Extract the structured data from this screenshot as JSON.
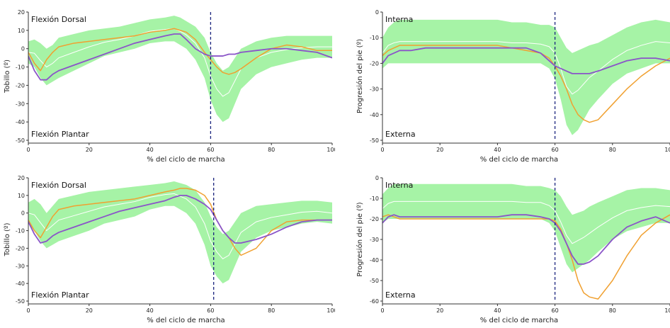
{
  "colors": {
    "band": "#a6f3a6",
    "mean": "#ffffff",
    "orange": "#f0a030",
    "purple": "#8a55c8",
    "marker": "#1a237e",
    "plot_bg": "#ffffff"
  },
  "chart_data": [
    {
      "type": "line",
      "xlabel": "% del ciclo de marcha",
      "ylabel": "Tobillo (º)",
      "xlim": [
        0,
        100
      ],
      "ylim": [
        -50,
        20
      ],
      "xticks": [
        "0",
        "20",
        "40",
        "60",
        "80",
        "100"
      ],
      "yticks": [
        "20",
        "10",
        "0",
        "-10",
        "-20",
        "-30",
        "-40",
        "-50"
      ],
      "annotation_top": "Flexión Dorsal",
      "annotation_bottom": "Flexión Plantar",
      "vline_x": 60,
      "x": [
        0,
        2,
        4,
        6,
        8,
        10,
        15,
        20,
        25,
        30,
        35,
        40,
        45,
        48,
        50,
        52,
        55,
        58,
        60,
        62,
        64,
        66,
        68,
        70,
        75,
        80,
        85,
        90,
        95,
        100
      ],
      "band_upper": [
        4,
        5,
        3,
        0,
        2,
        6,
        8,
        10,
        11,
        12,
        14,
        16,
        17,
        18,
        17,
        15,
        12,
        6,
        -2,
        -8,
        -12,
        -10,
        -5,
        0,
        4,
        6,
        7,
        7,
        7,
        7
      ],
      "band_lower": [
        -8,
        -10,
        -16,
        -20,
        -18,
        -16,
        -12,
        -8,
        -4,
        -2,
        0,
        3,
        4,
        4,
        2,
        0,
        -6,
        -16,
        -28,
        -36,
        -40,
        -38,
        -30,
        -22,
        -14,
        -10,
        -8,
        -6,
        -5,
        -5
      ],
      "series": [
        {
          "values": [
            -2,
            -8,
            -12,
            -6,
            -2,
            1,
            3,
            4,
            5,
            6,
            7,
            9,
            10,
            11,
            10,
            9,
            5,
            -2,
            -6,
            -10,
            -13,
            -14,
            -13,
            -11,
            -5,
            0,
            2,
            1,
            -1,
            -1
          ]
        },
        {
          "values": [
            -4,
            -12,
            -17,
            -17,
            -14,
            -12,
            -9,
            -6,
            -3,
            0,
            3,
            5,
            7,
            8,
            8,
            5,
            0,
            -3,
            -4,
            -4,
            -4,
            -3,
            -3,
            -2,
            -1,
            0,
            0,
            -1,
            -2,
            -5
          ]
        }
      ]
    },
    {
      "type": "line",
      "xlabel": "% del ciclo de marcha",
      "ylabel": "Progresión del pie (º)",
      "xlim": [
        0,
        100
      ],
      "ylim": [
        -50,
        0
      ],
      "xticks": [
        "0",
        "20",
        "40",
        "60",
        "80",
        "100"
      ],
      "yticks": [
        "0",
        "-10",
        "-20",
        "-30",
        "-40",
        "-50"
      ],
      "annotation_top": "Interna",
      "annotation_bottom": "Externa",
      "vline_x": 60,
      "x": [
        0,
        2,
        4,
        6,
        10,
        15,
        20,
        25,
        30,
        35,
        40,
        45,
        50,
        55,
        58,
        60,
        62,
        64,
        66,
        68,
        70,
        72,
        75,
        80,
        85,
        90,
        95,
        100
      ],
      "band_upper": [
        -10,
        -6,
        -4,
        -3,
        -3,
        -3,
        -3,
        -3,
        -3,
        -3,
        -3,
        -4,
        -4,
        -5,
        -5,
        -6,
        -10,
        -14,
        -16,
        -15,
        -14,
        -13,
        -12,
        -9,
        -6,
        -4,
        -3,
        -4
      ],
      "band_lower": [
        -22,
        -20,
        -20,
        -20,
        -20,
        -20,
        -20,
        -20,
        -20,
        -20,
        -20,
        -20,
        -20,
        -20,
        -22,
        -26,
        -34,
        -44,
        -48,
        -46,
        -42,
        -38,
        -34,
        -28,
        -24,
        -22,
        -20,
        -20
      ],
      "series": [
        {
          "values": [
            -17,
            -15,
            -14,
            -13,
            -13,
            -13,
            -13,
            -13,
            -13,
            -13,
            -13,
            -14,
            -15,
            -16,
            -18,
            -21,
            -25,
            -30,
            -36,
            -40,
            -42,
            -43,
            -42,
            -36,
            -30,
            -25,
            -21,
            -18
          ]
        },
        {
          "values": [
            -20,
            -17,
            -16,
            -15,
            -15,
            -14,
            -14,
            -14,
            -14,
            -14,
            -14,
            -14,
            -14,
            -16,
            -19,
            -21,
            -22,
            -23,
            -24,
            -24,
            -24,
            -24,
            -23,
            -21,
            -19,
            -18,
            -18,
            -19
          ]
        }
      ]
    },
    {
      "type": "line",
      "xlabel": "% del ciclo de marcha",
      "ylabel": "Tobillo (º)",
      "xlim": [
        0,
        100
      ],
      "ylim": [
        -50,
        20
      ],
      "xticks": [
        "0",
        "20",
        "40",
        "60",
        "80",
        "100"
      ],
      "yticks": [
        "20",
        "10",
        "0",
        "-10",
        "-20",
        "-30",
        "-40",
        "-50"
      ],
      "annotation_top": "Flexión Dorsal",
      "annotation_bottom": "Flexión Plantar",
      "vline_x": 61,
      "x": [
        0,
        2,
        4,
        6,
        8,
        10,
        15,
        20,
        25,
        30,
        35,
        40,
        45,
        48,
        50,
        52,
        55,
        58,
        60,
        62,
        64,
        66,
        68,
        70,
        75,
        80,
        85,
        90,
        95,
        100
      ],
      "band_upper": [
        6,
        8,
        5,
        0,
        4,
        8,
        10,
        12,
        13,
        14,
        15,
        16,
        17,
        18,
        17,
        16,
        13,
        6,
        -2,
        -8,
        -12,
        -10,
        -5,
        0,
        4,
        5,
        6,
        7,
        7,
        6
      ],
      "band_lower": [
        -6,
        -10,
        -16,
        -20,
        -18,
        -16,
        -13,
        -10,
        -6,
        -4,
        -2,
        2,
        4,
        4,
        2,
        0,
        -6,
        -18,
        -30,
        -36,
        -40,
        -38,
        -30,
        -22,
        -14,
        -10,
        -8,
        -6,
        -5,
        -6
      ],
      "series": [
        {
          "values": [
            -4,
            -10,
            -14,
            -8,
            -2,
            2,
            4,
            5,
            6,
            7,
            8,
            10,
            12,
            13,
            14,
            14,
            13,
            10,
            5,
            -4,
            -10,
            -14,
            -20,
            -24,
            -20,
            -10,
            -5,
            -4,
            -4,
            -4
          ]
        },
        {
          "values": [
            -5,
            -12,
            -17,
            -16,
            -13,
            -11,
            -8,
            -5,
            -2,
            1,
            3,
            5,
            7,
            9,
            10,
            10,
            8,
            5,
            2,
            -4,
            -10,
            -14,
            -17,
            -17,
            -15,
            -12,
            -8,
            -5,
            -4,
            -4
          ]
        }
      ]
    },
    {
      "type": "line",
      "xlabel": "% del ciclo de marcha",
      "ylabel": "Progresión del pie (º)",
      "xlim": [
        0,
        100
      ],
      "ylim": [
        -60,
        0
      ],
      "xticks": [
        "0",
        "20",
        "40",
        "60",
        "80",
        "100"
      ],
      "yticks": [
        "0",
        "-10",
        "-20",
        "-30",
        "-40",
        "-50",
        "-60"
      ],
      "annotation_top": "Interna",
      "annotation_bottom": "Externa",
      "vline_x": 60,
      "x": [
        0,
        2,
        4,
        6,
        10,
        15,
        20,
        25,
        30,
        35,
        40,
        45,
        50,
        55,
        58,
        60,
        62,
        64,
        66,
        68,
        70,
        72,
        75,
        80,
        85,
        90,
        95,
        100
      ],
      "band_upper": [
        -8,
        -5,
        -3,
        -3,
        -3,
        -3,
        -3,
        -3,
        -3,
        -3,
        -3,
        -3,
        -4,
        -4,
        -5,
        -6,
        -9,
        -14,
        -18,
        -17,
        -16,
        -14,
        -12,
        -9,
        -6,
        -5,
        -5,
        -6
      ],
      "band_lower": [
        -22,
        -20,
        -20,
        -20,
        -20,
        -20,
        -20,
        -20,
        -20,
        -20,
        -20,
        -20,
        -20,
        -20,
        -22,
        -26,
        -34,
        -42,
        -46,
        -44,
        -42,
        -40,
        -36,
        -30,
        -26,
        -24,
        -22,
        -22
      ],
      "series": [
        {
          "values": [
            -19,
            -18,
            -19,
            -20,
            -20,
            -20,
            -20,
            -20,
            -20,
            -20,
            -20,
            -20,
            -20,
            -20,
            -20,
            -21,
            -25,
            -32,
            -40,
            -50,
            -56,
            -58,
            -59,
            -50,
            -38,
            -28,
            -22,
            -18
          ]
        },
        {
          "values": [
            -22,
            -19,
            -18,
            -19,
            -19,
            -19,
            -19,
            -19,
            -19,
            -19,
            -19,
            -18,
            -18,
            -19,
            -20,
            -22,
            -26,
            -32,
            -38,
            -42,
            -42,
            -41,
            -38,
            -30,
            -24,
            -21,
            -19,
            -22
          ]
        }
      ]
    }
  ]
}
